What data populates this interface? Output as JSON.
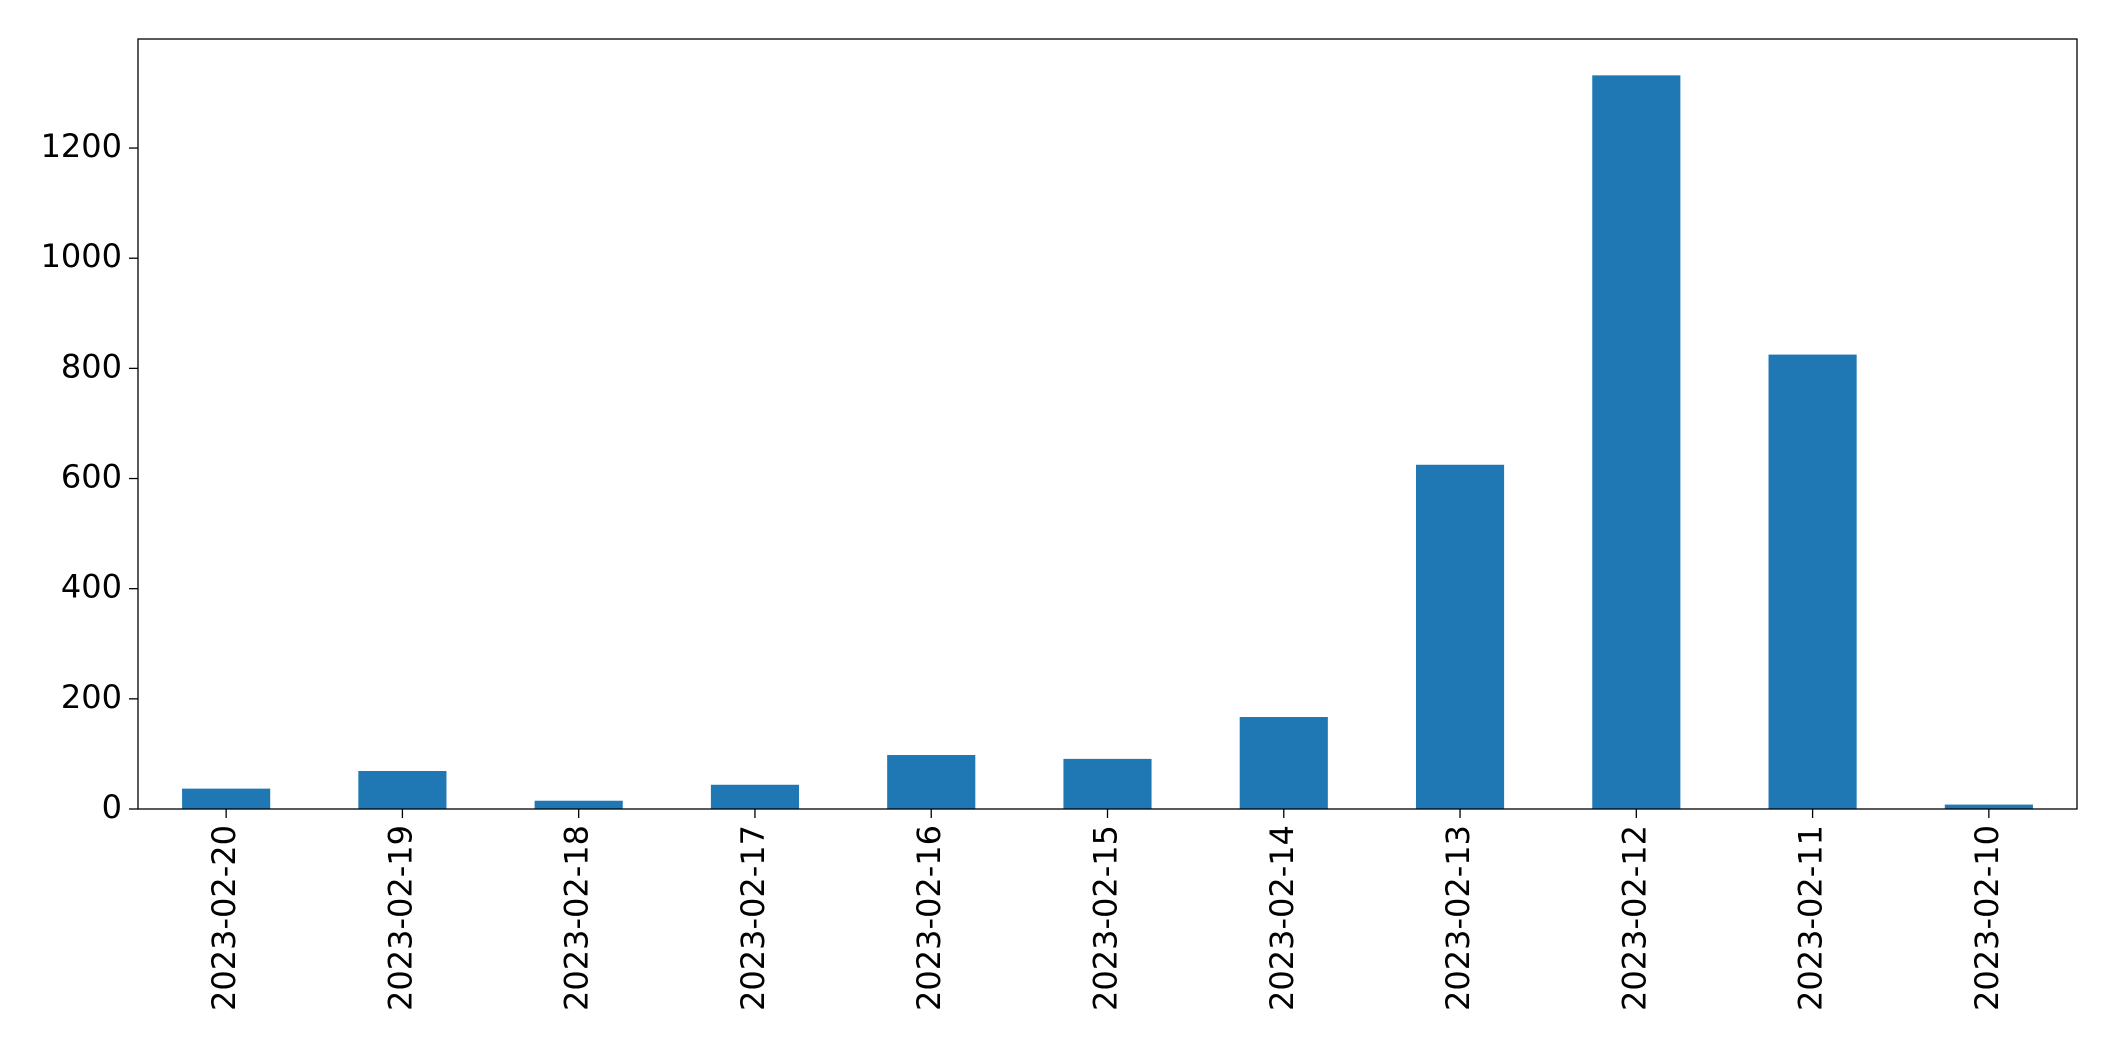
{
  "chart_data": {
    "type": "bar",
    "categories": [
      "2023-02-20",
      "2023-02-19",
      "2023-02-18",
      "2023-02-17",
      "2023-02-16",
      "2023-02-15",
      "2023-02-14",
      "2023-02-13",
      "2023-02-12",
      "2023-02-11",
      "2023-02-10"
    ],
    "values": [
      37,
      69,
      15,
      44,
      98,
      91,
      167,
      625,
      1332,
      825,
      8
    ],
    "color": "#1f77b4",
    "ylim": [
      0,
      1398
    ],
    "yticks": [
      0,
      200,
      400,
      600,
      800,
      1000,
      1200
    ],
    "grid": false
  }
}
